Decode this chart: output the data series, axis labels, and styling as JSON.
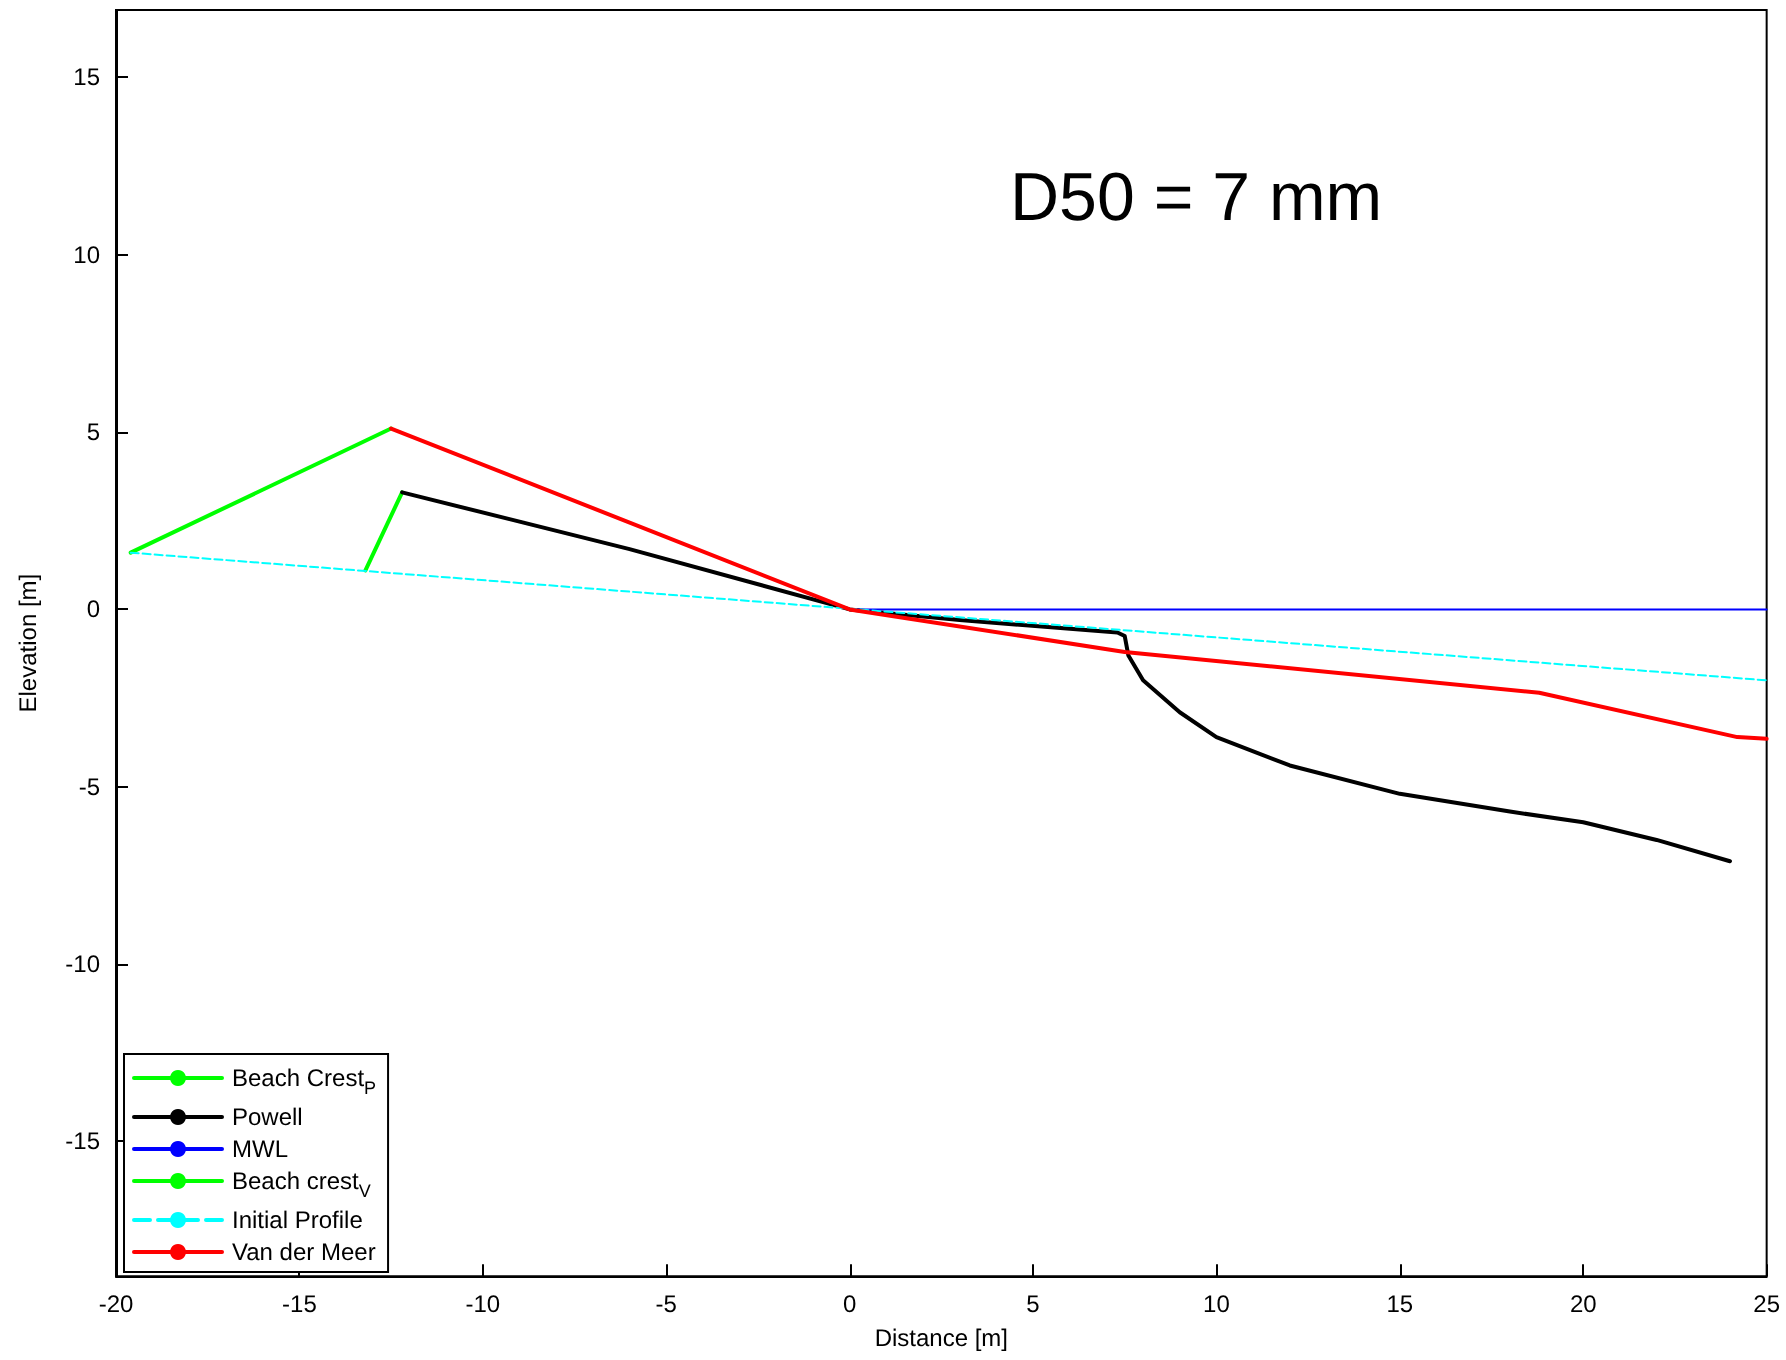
{
  "chart_data": {
    "type": "line",
    "xlabel": "Distance [m]",
    "ylabel": "Elevation [m]",
    "annotations": [
      "D50 = 7 mm"
    ],
    "series": [
      {
        "name": "Beach Crest$_{P}$",
        "color": "#00ff00",
        "x": [
          -13.2,
          -12.2
        ],
        "values": [
          1.1,
          3.3
        ]
      },
      {
        "name": "Powell",
        "color": "#000000",
        "x": [
          -12.2,
          -6,
          0,
          3,
          7.3,
          7.5,
          7.6,
          8,
          9,
          10,
          12,
          15,
          18,
          20,
          22,
          24
        ],
        "values": [
          3.3,
          1.7,
          0,
          -0.3,
          -0.65,
          -0.75,
          -1.3,
          -2.0,
          -2.9,
          -3.6,
          -4.4,
          -5.2,
          -5.7,
          -6.0,
          -6.5,
          -7.1
        ]
      },
      {
        "name": "MWL",
        "color": "#0000ff",
        "x": [
          0,
          25
        ],
        "values": [
          0,
          0
        ]
      },
      {
        "name": "Beach crest$_{V}$",
        "color": "#00ff00",
        "x": [
          -19.6,
          -12.5
        ],
        "values": [
          1.6,
          5.1
        ]
      },
      {
        "name": "Initial Profile",
        "color": "#00ffff",
        "line_style": "dashed",
        "x": [
          -19.6,
          25
        ],
        "values": [
          1.6,
          -2.0
        ]
      },
      {
        "name": "Van der Meer",
        "color": "#ff0000",
        "x": [
          -12.5,
          0,
          7.5,
          18.8,
          24.2,
          25
        ],
        "values": [
          5.1,
          0,
          -1.2,
          -2.35,
          -3.6,
          -3.65
        ]
      }
    ],
    "xlim": [
      -20,
      25
    ],
    "xticks": [
      -20,
      -15,
      -10,
      -5,
      0,
      5,
      10,
      15,
      20,
      25
    ],
    "ylim": [
      -18.8,
      16.9
    ],
    "yticks": [
      -15,
      -10,
      -5,
      0,
      5,
      10,
      15
    ],
    "grid": false,
    "legend": "bottom left",
    "marker": "none",
    "line_style": "solid"
  }
}
